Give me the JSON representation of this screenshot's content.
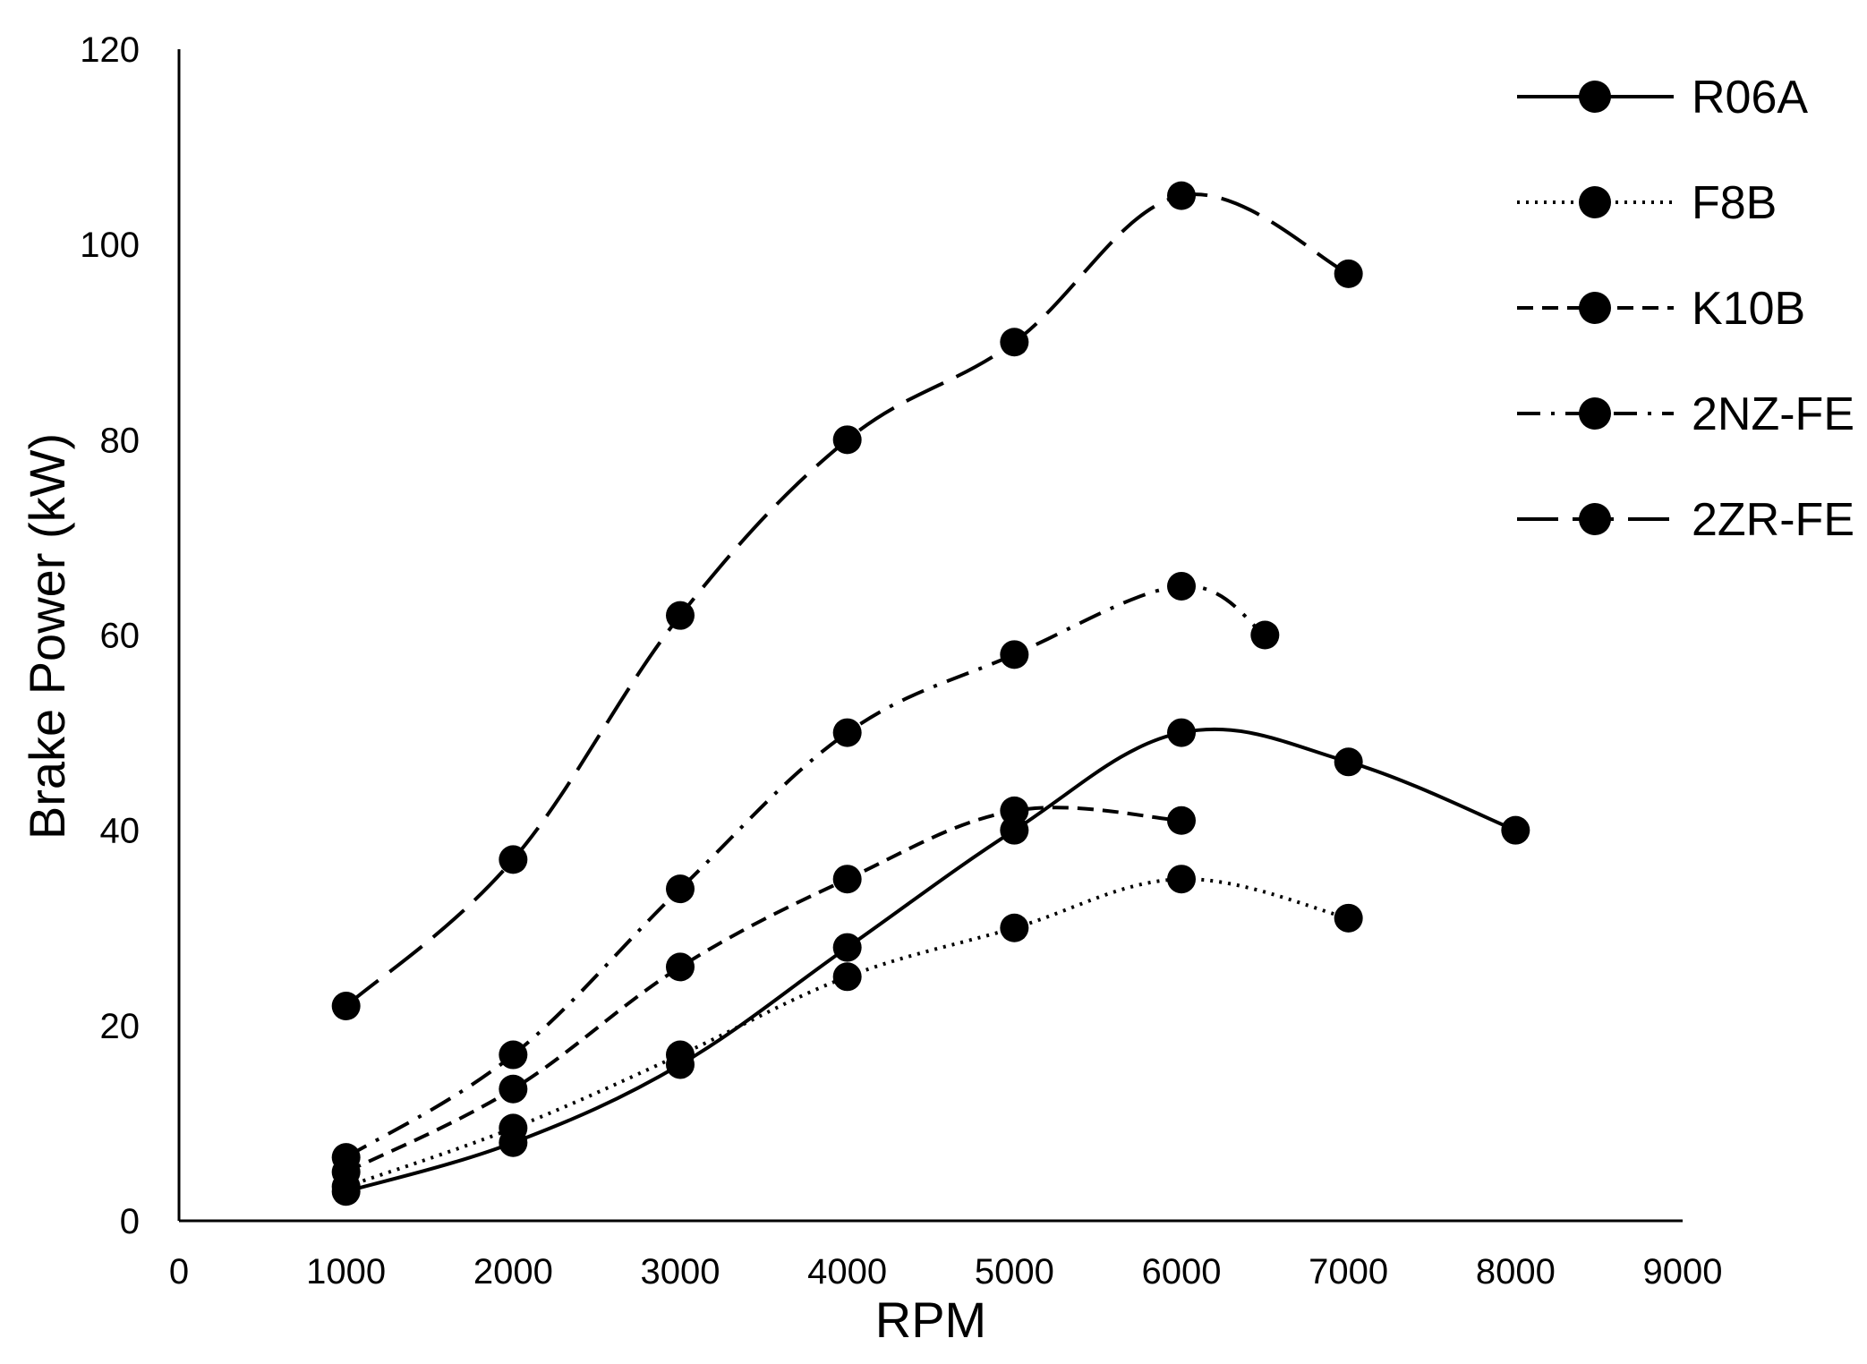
{
  "chart_data": {
    "type": "line",
    "title": "",
    "xlabel": "RPM",
    "ylabel": "Brake Power (kW)",
    "xlim": [
      0,
      9000
    ],
    "ylim": [
      0,
      120
    ],
    "xticks": [
      "0",
      "1000",
      "2000",
      "3000",
      "4000",
      "5000",
      "6000",
      "7000",
      "8000",
      "9000"
    ],
    "yticks": [
      "0",
      "20",
      "40",
      "60",
      "80",
      "100",
      "120"
    ],
    "grid": false,
    "legend_position": "top-right",
    "marker": "filled-circle",
    "color": "#000000",
    "series": [
      {
        "name": "R06A",
        "dash": "solid",
        "x": [
          1000,
          2000,
          3000,
          4000,
          5000,
          6000,
          7000,
          8000
        ],
        "y": [
          3,
          8,
          16,
          28,
          40,
          50,
          47,
          40
        ]
      },
      {
        "name": "F8B",
        "dash": "dotted",
        "x": [
          1000,
          2000,
          3000,
          4000,
          5000,
          6000,
          7000
        ],
        "y": [
          3.5,
          9.5,
          17,
          25,
          30,
          35,
          31
        ]
      },
      {
        "name": "K10B",
        "dash": "dashed",
        "x": [
          1000,
          2000,
          3000,
          4000,
          5000,
          6000
        ],
        "y": [
          5,
          13.5,
          26,
          35,
          42,
          41
        ]
      },
      {
        "name": "2NZ-FE",
        "dash": "dash-dot",
        "x": [
          1000,
          2000,
          3000,
          4000,
          5000,
          6000,
          6500
        ],
        "y": [
          6.5,
          17,
          34,
          50,
          58,
          65,
          60
        ]
      },
      {
        "name": "2ZR-FE",
        "dash": "long-dash",
        "x": [
          1000,
          2000,
          3000,
          4000,
          5000,
          6000,
          7000
        ],
        "y": [
          22,
          37,
          62,
          80,
          90,
          105,
          97
        ]
      }
    ]
  }
}
